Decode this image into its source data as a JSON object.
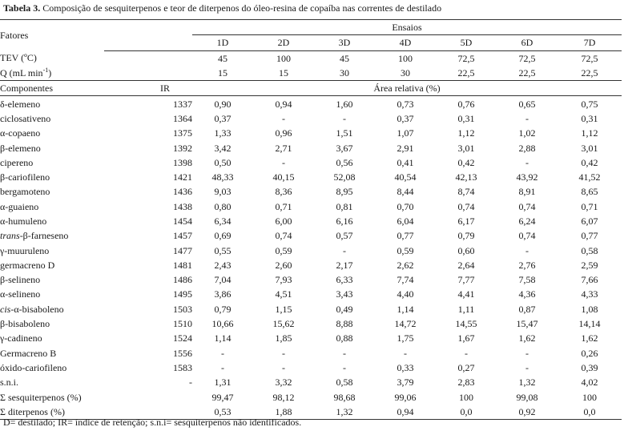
{
  "caption": {
    "label": "Tabela 3.",
    "text": " Composição de sesquiterpenos e teor de diterpenos do óleo-resina de copaíba nas correntes de destilado"
  },
  "header": {
    "fatores": "Fatores",
    "ensaios": "Ensaios",
    "trials": [
      "1D",
      "2D",
      "3D",
      "4D",
      "5D",
      "6D",
      "7D"
    ]
  },
  "factors": [
    {
      "label": "TEV (ºC)",
      "values": [
        "45",
        "100",
        "45",
        "100",
        "72,5",
        "72,5",
        "72,5"
      ]
    },
    {
      "label_main": "Q (mL min",
      "label_sup": "-1",
      "label_end": ")",
      "values": [
        "15",
        "15",
        "30",
        "30",
        "22,5",
        "22,5",
        "22,5"
      ]
    }
  ],
  "subheader": {
    "componentes": "Componentes",
    "ir": "IR",
    "area": "Área relativa (%)"
  },
  "components": [
    {
      "name": "δ-elemeno",
      "ir": "1337",
      "values": [
        "0,90",
        "0,94",
        "1,60",
        "0,73",
        "0,76",
        "0,65",
        "0,75"
      ]
    },
    {
      "name": "ciclosativeno",
      "ir": "1364",
      "values": [
        "0,37",
        "-",
        "-",
        "0,37",
        "0,31",
        "-",
        "0,31"
      ]
    },
    {
      "name": "α-copaeno",
      "ir": "1375",
      "values": [
        "1,33",
        "0,96",
        "1,51",
        "1,07",
        "1,12",
        "1,02",
        "1,12"
      ]
    },
    {
      "name": "β-elemeno",
      "ir": "1392",
      "values": [
        "3,42",
        "2,71",
        "3,67",
        "2,91",
        "3,01",
        "2,88",
        "3,01"
      ]
    },
    {
      "name": "cipereno",
      "ir": "1398",
      "values": [
        "0,50",
        "-",
        "0,56",
        "0,41",
        "0,42",
        "-",
        "0,42"
      ]
    },
    {
      "name": "β-cariofileno",
      "ir": "1421",
      "values": [
        "48,33",
        "40,15",
        "52,08",
        "40,54",
        "42,13",
        "43,92",
        "41,52"
      ]
    },
    {
      "name": "bergamoteno",
      "ir": "1436",
      "values": [
        "9,03",
        "8,36",
        "8,95",
        "8,44",
        "8,74",
        "8,91",
        "8,65"
      ]
    },
    {
      "name": "α-guaieno",
      "ir": "1438",
      "values": [
        "0,80",
        "0,71",
        "0,81",
        "0,70",
        "0,74",
        "0,74",
        "0,71"
      ]
    },
    {
      "name": "α-humuleno",
      "ir": "1454",
      "values": [
        "6,34",
        "6,00",
        "6,16",
        "6,04",
        "6,17",
        "6,24",
        "6,07"
      ]
    },
    {
      "name_italic": "trans",
      "name": "-β-farneseno",
      "ir": "1457",
      "values": [
        "0,69",
        "0,74",
        "0,57",
        "0,77",
        "0,79",
        "0,74",
        "0,77"
      ]
    },
    {
      "name": "γ-muuruleno",
      "ir": "1477",
      "values": [
        "0,55",
        "0,59",
        "-",
        "0,59",
        "0,60",
        "-",
        "0,58"
      ]
    },
    {
      "name": "germacreno D",
      "ir": "1481",
      "values": [
        "2,43",
        "2,60",
        "2,17",
        "2,62",
        "2,64",
        "2,76",
        "2,59"
      ]
    },
    {
      "name": "β-selineno",
      "ir": "1486",
      "values": [
        "7,04",
        "7,93",
        "6,33",
        "7,74",
        "7,77",
        "7,58",
        "7,66"
      ]
    },
    {
      "name": "α-selineno",
      "ir": "1495",
      "values": [
        "3,86",
        "4,51",
        "3,43",
        "4,40",
        "4,41",
        "4,36",
        "4,33"
      ]
    },
    {
      "name_italic": "cis",
      "name": "-α-bisaboleno",
      "ir": "1503",
      "values": [
        "0,79",
        "1,15",
        "0,49",
        "1,14",
        "1,11",
        "0,87",
        "1,08"
      ]
    },
    {
      "name": "β-bisaboleno",
      "ir": "1510",
      "values": [
        "10,66",
        "15,62",
        "8,88",
        "14,72",
        "14,55",
        "15,47",
        "14,14"
      ]
    },
    {
      "name": "γ-cadineno",
      "ir": "1524",
      "values": [
        "1,14",
        "1,85",
        "0,88",
        "1,75",
        "1,67",
        "1,62",
        "1,62"
      ]
    },
    {
      "name": "Germacreno B",
      "ir": "1556",
      "values": [
        "-",
        "-",
        "-",
        "-",
        "-",
        "-",
        "0,26"
      ]
    },
    {
      "name": "óxido-cariofileno",
      "ir": "1583",
      "values": [
        "-",
        "-",
        "-",
        "0,33",
        "0,27",
        "-",
        "0,39"
      ]
    },
    {
      "name": "s.n.i.",
      "ir": "-",
      "values": [
        "1,31",
        "3,32",
        "0,58",
        "3,79",
        "2,83",
        "1,32",
        "4,02"
      ]
    },
    {
      "name": "Σ sesquiterpenos (%)",
      "ir": "",
      "values": [
        "99,47",
        "98,12",
        "98,68",
        "99,06",
        "100",
        "99,08",
        "100"
      ]
    },
    {
      "name": "Σ diterpenos (%)",
      "ir": "",
      "values": [
        "0,53",
        "1,88",
        "1,32",
        "0,94",
        "0,0",
        "0,92",
        "0,0"
      ]
    }
  ],
  "footnote": "D= destilado; IR= índice de retenção; s.n.i= sesquiterpenos não identificados."
}
